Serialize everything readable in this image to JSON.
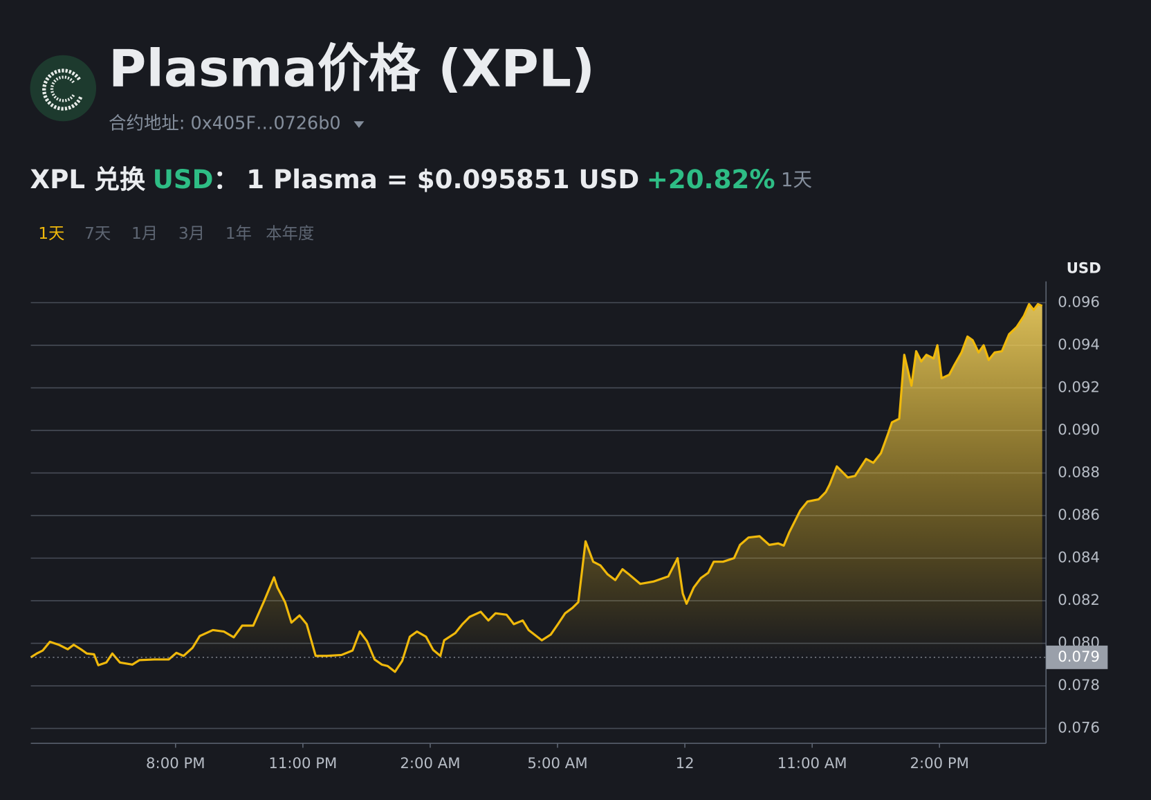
{
  "header": {
    "title": "Plasma价格 (XPL)",
    "contract": "合约地址: 0x405F…0726b0"
  },
  "price_line": {
    "pair": "XPL 兑换",
    "quote": "USD",
    "colon": "：",
    "rate": "1 Plasma = $0.095851 USD",
    "change": "+20.82%",
    "period": "1天"
  },
  "tabs": [
    "1天",
    "7天",
    "1月",
    "3月",
    "1年",
    "本年度"
  ],
  "chart_data": {
    "type": "area",
    "y_unit": "USD",
    "color": "#f0b90b",
    "grid": true,
    "x": [
      16.59,
      16.73,
      16.87,
      17.04,
      17.25,
      17.46,
      17.6,
      17.77,
      17.91,
      18.08,
      18.18,
      18.37,
      18.51,
      18.69,
      18.98,
      19.15,
      19.5,
      19.84,
      20.02,
      20.19,
      20.4,
      20.57,
      20.88,
      21.14,
      21.37,
      21.57,
      21.83,
      22.09,
      22.32,
      22.4,
      22.58,
      22.73,
      22.92,
      23.09,
      23.3,
      23.56,
      23.91,
      24.17,
      24.34,
      24.51,
      24.69,
      24.86,
      25.0,
      25.17,
      25.34,
      25.52,
      25.69,
      25.9,
      26.07,
      26.24,
      26.33,
      26.59,
      26.76,
      26.93,
      27.19,
      27.37,
      27.54,
      27.8,
      27.97,
      28.18,
      28.32,
      28.63,
      28.84,
      29.01,
      29.18,
      29.35,
      29.49,
      29.66,
      29.84,
      30.01,
      30.18,
      30.36,
      30.53,
      30.7,
      30.95,
      31.26,
      31.61,
      31.83,
      31.95,
      32.04,
      32.21,
      32.38,
      32.55,
      32.68,
      32.9,
      33.16,
      33.3,
      33.5,
      33.76,
      33.99,
      34.2,
      34.33,
      34.46,
      34.72,
      34.89,
      35.15,
      35.32,
      35.41,
      35.58,
      35.84,
      36.01,
      36.27,
      36.44,
      36.62,
      36.79,
      36.88,
      37.05,
      37.17,
      37.34,
      37.45,
      37.57,
      37.69,
      37.86,
      37.95,
      38.05,
      38.23,
      38.35,
      38.52,
      38.66,
      38.78,
      38.92,
      39.04,
      39.16,
      39.3,
      39.47,
      39.64,
      39.82,
      39.99,
      40.11,
      40.22,
      40.32,
      40.42
    ],
    "values": [
      0.07934,
      0.07952,
      0.07966,
      0.08007,
      0.07993,
      0.07972,
      0.07993,
      0.07972,
      0.07952,
      0.07948,
      0.07897,
      0.0791,
      0.07952,
      0.0791,
      0.079,
      0.07921,
      0.07924,
      0.07924,
      0.07955,
      0.07941,
      0.07979,
      0.08034,
      0.08062,
      0.08055,
      0.08028,
      0.08083,
      0.08083,
      0.082,
      0.0831,
      0.08262,
      0.08193,
      0.08097,
      0.08131,
      0.0809,
      0.07941,
      0.07941,
      0.07945,
      0.07966,
      0.08055,
      0.0801,
      0.07924,
      0.079,
      0.07893,
      0.07866,
      0.07917,
      0.08031,
      0.08055,
      0.08031,
      0.07969,
      0.07941,
      0.08014,
      0.08048,
      0.0809,
      0.08124,
      0.08148,
      0.08107,
      0.08141,
      0.08134,
      0.0809,
      0.08107,
      0.08062,
      0.08014,
      0.08041,
      0.0809,
      0.08141,
      0.08166,
      0.08193,
      0.08479,
      0.08383,
      0.08366,
      0.08324,
      0.08297,
      0.08348,
      0.08321,
      0.08279,
      0.0829,
      0.08314,
      0.084,
      0.08234,
      0.08186,
      0.08262,
      0.08307,
      0.08331,
      0.08383,
      0.08383,
      0.084,
      0.08462,
      0.08497,
      0.08503,
      0.08462,
      0.08469,
      0.08459,
      0.08521,
      0.08624,
      0.08666,
      0.08676,
      0.0871,
      0.08745,
      0.08831,
      0.08779,
      0.08786,
      0.08866,
      0.08848,
      0.08893,
      0.08986,
      0.09038,
      0.09055,
      0.09355,
      0.0921,
      0.09372,
      0.09324,
      0.09355,
      0.09338,
      0.094,
      0.09245,
      0.09262,
      0.09307,
      0.09366,
      0.09441,
      0.09424,
      0.09366,
      0.094,
      0.09331,
      0.09366,
      0.09372,
      0.09452,
      0.09486,
      0.09538,
      0.09593,
      0.09566,
      0.09593,
      0.09585
    ],
    "xlim": [
      16.59,
      40.51
    ],
    "xticks": [
      {
        "value": 20,
        "label": "8:00 PM"
      },
      {
        "value": 23,
        "label": "11:00 PM"
      },
      {
        "value": 26,
        "label": "2:00 AM"
      },
      {
        "value": 29,
        "label": "5:00 AM"
      },
      {
        "value": 32,
        "label": "12"
      },
      {
        "value": 35,
        "label": "11:00 AM"
      },
      {
        "value": 38,
        "label": "2:00 PM"
      }
    ],
    "ylim": [
      0.0753,
      0.097
    ],
    "yticks": [
      0.076,
      0.078,
      {
        "value": 0.08,
        "label": "0.080"
      },
      0.082,
      0.084,
      0.086,
      0.088,
      {
        "value": 0.09,
        "label": "0.090"
      },
      0.092,
      0.094,
      0.096
    ],
    "reference_line": {
      "value": 0.07934,
      "label": "0.079"
    }
  }
}
